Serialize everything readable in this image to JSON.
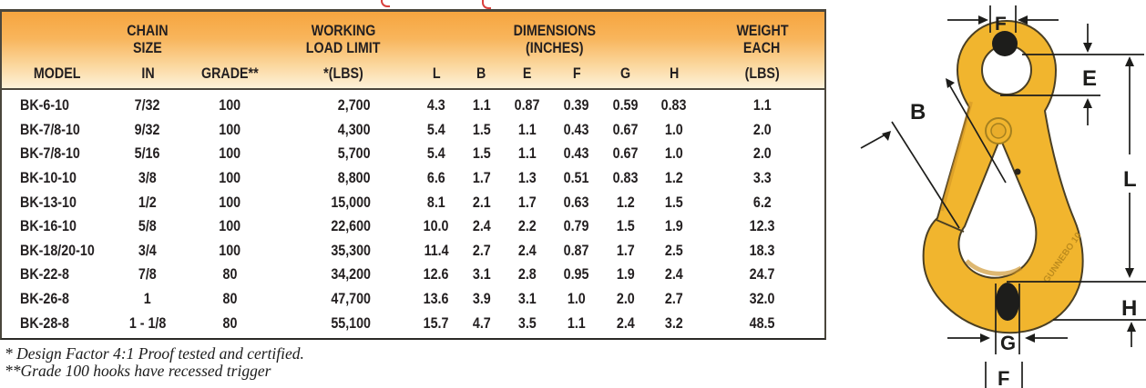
{
  "table": {
    "headers": {
      "model": "MODEL",
      "chain_size": [
        "CHAIN",
        "SIZE",
        "IN"
      ],
      "grade": "GRADE**",
      "working_load_limit": [
        "WORKING",
        "LOAD LIMIT",
        "*(LBS)"
      ],
      "dimensions_group": [
        "DIMENSIONS",
        "(INCHES)"
      ],
      "dimension_letters": [
        "L",
        "B",
        "E",
        "F",
        "G",
        "H"
      ],
      "weight": [
        "WEIGHT",
        "EACH",
        "(LBS)"
      ]
    },
    "rows": [
      [
        "BK-6-10",
        "7/32",
        "100",
        "2,700",
        "4.3",
        "1.1",
        "0.87",
        "0.39",
        "0.59",
        "0.83",
        "1.1"
      ],
      [
        "BK-7/8-10",
        "9/32",
        "100",
        "4,300",
        "5.4",
        "1.5",
        "1.1",
        "0.43",
        "0.67",
        "1.0",
        "2.0"
      ],
      [
        "BK-7/8-10",
        "5/16",
        "100",
        "5,700",
        "5.4",
        "1.5",
        "1.1",
        "0.43",
        "0.67",
        "1.0",
        "2.0"
      ],
      [
        "BK-10-10",
        "3/8",
        "100",
        "8,800",
        "6.6",
        "1.7",
        "1.3",
        "0.51",
        "0.83",
        "1.2",
        "3.3"
      ],
      [
        "BK-13-10",
        "1/2",
        "100",
        "15,000",
        "8.1",
        "2.1",
        "1.7",
        "0.63",
        "1.2",
        "1.5",
        "6.2"
      ],
      [
        "BK-16-10",
        "5/8",
        "100",
        "22,600",
        "10.0",
        "2.4",
        "2.2",
        "0.79",
        "1.5",
        "1.9",
        "12.3"
      ],
      [
        "BK-18/20-10",
        "3/4",
        "100",
        "35,300",
        "11.4",
        "2.7",
        "2.4",
        "0.87",
        "1.7",
        "2.5",
        "18.3"
      ],
      [
        "BK-22-8",
        "7/8",
        "80",
        "34,200",
        "12.6",
        "3.1",
        "2.8",
        "0.95",
        "1.9",
        "2.4",
        "24.7"
      ],
      [
        "BK-26-8",
        "1",
        "80",
        "47,700",
        "13.6",
        "3.9",
        "3.1",
        "1.0",
        "2.0",
        "2.7",
        "32.0"
      ],
      [
        "BK-28-8",
        "1 - 1/8",
        "80",
        "55,100",
        "15.7",
        "4.7",
        "3.5",
        "1.1",
        "2.4",
        "3.2",
        "48.5"
      ]
    ]
  },
  "footnotes": [
    "* Design Factor 4:1 Proof tested and certified.",
    "**Grade 100 hooks have recessed trigger"
  ],
  "diagram": {
    "labels": {
      "f_top": "F",
      "e": "E",
      "b": "B",
      "l": "L",
      "h": "H",
      "g": "G",
      "f_bottom": "F"
    },
    "engraving": "GUNNEBO 10"
  },
  "colors": {
    "header_gradient_top": "#f6a53f",
    "header_gradient_bottom": "#fdf2da",
    "hook_yellow": "#f1b52e",
    "hook_shade": "#cd9226",
    "hook_outline": "#4a3f24",
    "marker_black": "#1d1d1b",
    "title_fragment_red": "#d9403d",
    "text": "#231f20"
  }
}
